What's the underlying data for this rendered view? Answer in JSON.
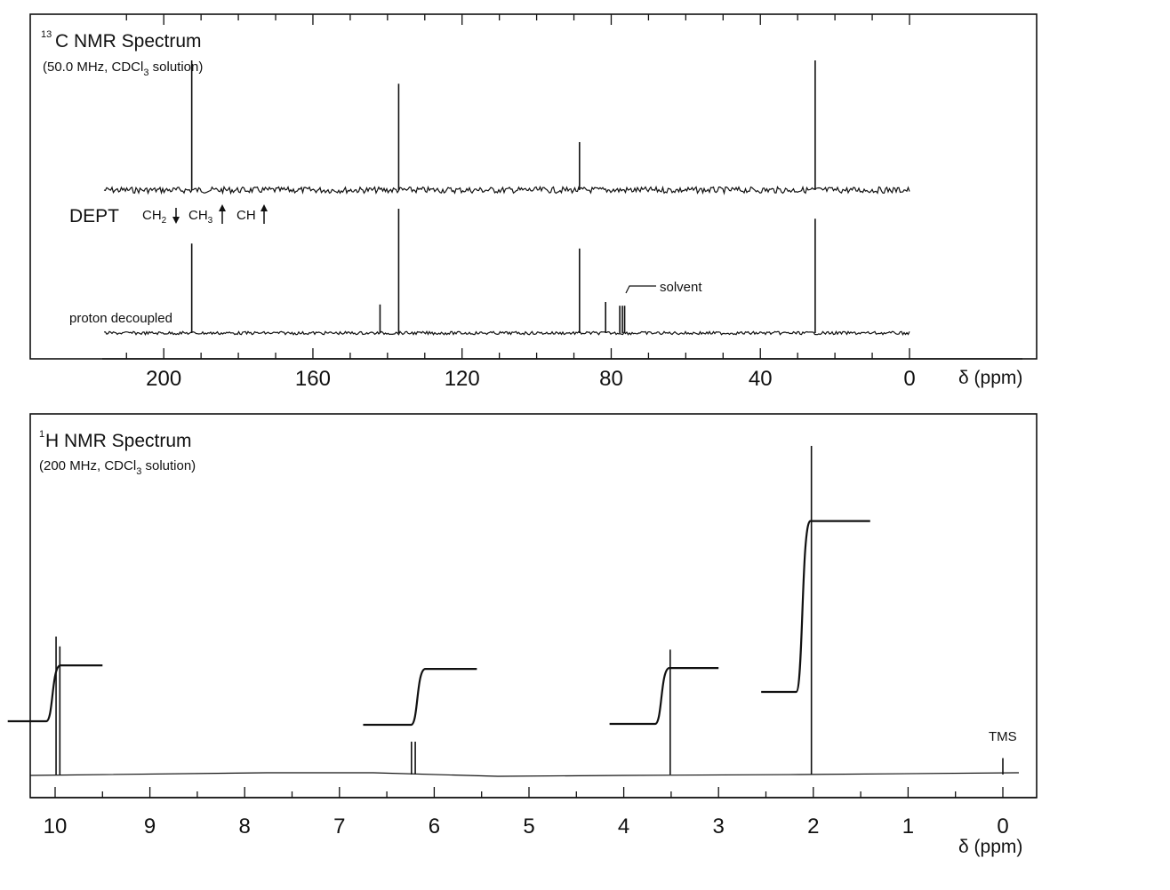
{
  "chart_data": [
    {
      "type": "line",
      "title": "13C NMR Spectrum",
      "title_superscript": "13",
      "title_text": "C  NMR Spectrum",
      "subtitle_parts": [
        "(50.0 MHz, CDCl",
        "3",
        " solution)"
      ],
      "xlabel": "δ (ppm)",
      "xlim": [
        220,
        0
      ],
      "xticks": [
        200,
        160,
        120,
        80,
        40,
        0
      ],
      "dept": {
        "label": "DEPT",
        "legend": [
          {
            "base": "CH",
            "sub": "2",
            "arrow": "down"
          },
          {
            "base": "CH",
            "sub": "3",
            "arrow": "up"
          },
          {
            "base": "CH",
            "sub": "",
            "arrow": "up"
          }
        ],
        "peaks": [
          {
            "ppm": 192.5,
            "height": 1.0,
            "direction": "up"
          },
          {
            "ppm": 137.0,
            "height": 0.82,
            "direction": "up"
          },
          {
            "ppm": 88.5,
            "height": 0.37,
            "direction": "up"
          },
          {
            "ppm": 25.3,
            "height": 1.0,
            "direction": "up"
          }
        ]
      },
      "proton_decoupled": {
        "label": "proton decoupled",
        "peaks": [
          {
            "ppm": 192.5,
            "height": 0.72
          },
          {
            "ppm": 142.0,
            "height": 0.23
          },
          {
            "ppm": 137.0,
            "height": 1.0
          },
          {
            "ppm": 88.5,
            "height": 0.68
          },
          {
            "ppm": 81.5,
            "height": 0.25
          },
          {
            "ppm": 77.7,
            "height": 0.22
          },
          {
            "ppm": 77.0,
            "height": 0.22
          },
          {
            "ppm": 76.4,
            "height": 0.22
          },
          {
            "ppm": 25.3,
            "height": 0.92
          }
        ],
        "annotation": "solvent"
      }
    },
    {
      "type": "line",
      "title": "1H NMR Spectrum",
      "title_superscript": "1",
      "title_text": "H  NMR Spectrum",
      "subtitle_parts": [
        "(200 MHz, CDCl",
        "3",
        " solution)"
      ],
      "xlabel": "δ (ppm)",
      "xlim": [
        10.25,
        -0.2
      ],
      "xticks": [
        10,
        9,
        8,
        7,
        6,
        5,
        4,
        3,
        2,
        1,
        0
      ],
      "peaks": [
        {
          "ppm": 9.99,
          "height": 0.42
        },
        {
          "ppm": 9.95,
          "height": 0.39
        },
        {
          "ppm": 6.24,
          "height": 0.1
        },
        {
          "ppm": 6.2,
          "height": 0.1
        },
        {
          "ppm": 3.51,
          "height": 0.38
        },
        {
          "ppm": 2.02,
          "height": 1.0
        },
        {
          "ppm": 0.0,
          "height": 0.05
        }
      ],
      "integrals": [
        {
          "from_ppm": 10.5,
          "to_ppm": 9.5,
          "step": 0.17
        },
        {
          "from_ppm": 6.75,
          "to_ppm": 5.55,
          "step": 0.17
        },
        {
          "from_ppm": 4.15,
          "to_ppm": 3.0,
          "step": 0.17
        },
        {
          "from_ppm": 2.55,
          "to_ppm": 1.4,
          "step": 0.52
        }
      ],
      "annotation": "TMS"
    }
  ]
}
